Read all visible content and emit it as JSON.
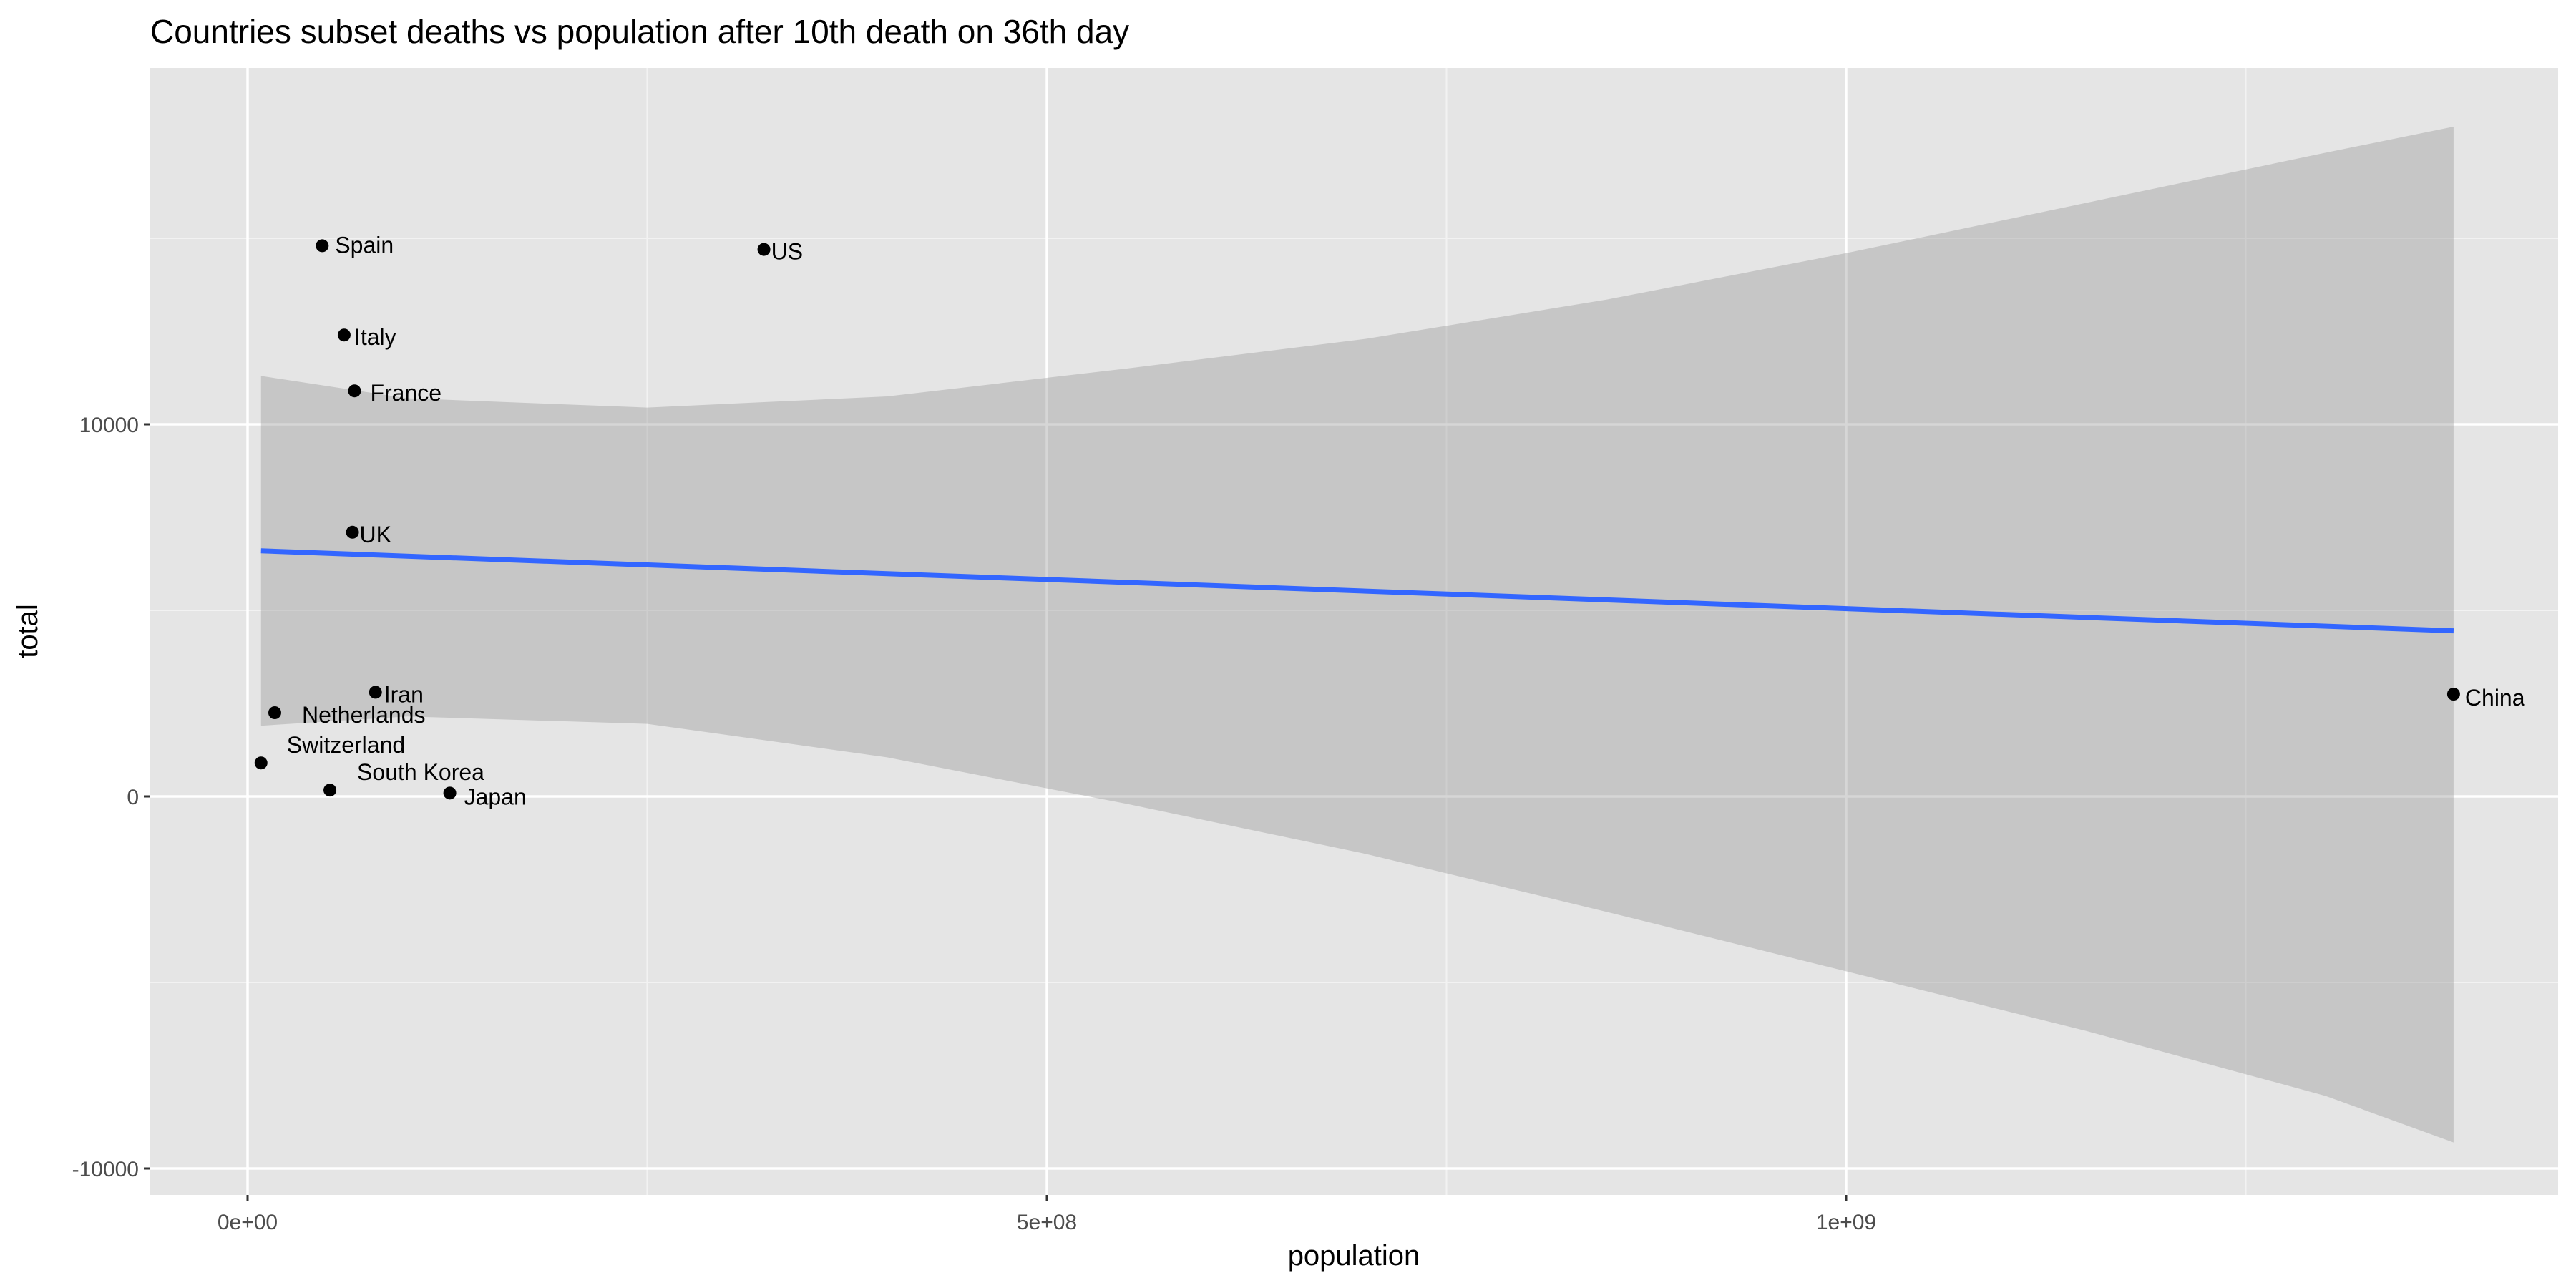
{
  "chart_data": {
    "type": "scatter",
    "title": "Countries subset deaths vs population after 10th death on 36th day",
    "xlabel": "population",
    "ylabel": "total",
    "xlim": [
      -60000000,
      1450000000
    ],
    "ylim": [
      -10600000,
      19000000
    ],
    "x_ticks": [
      0,
      500000000,
      1000000000
    ],
    "x_tick_labels": [
      "0e+00",
      "5e+08",
      "1e+09"
    ],
    "y_ticks": [
      -10000,
      0,
      10000
    ],
    "y_tick_labels": [
      "-10000",
      "0",
      "10000"
    ],
    "grid": true,
    "background": "#e5e5e5",
    "point_color": "#000000",
    "points": [
      {
        "label": "Spain",
        "x": 46700000,
        "y": 14800
      },
      {
        "label": "US",
        "x": 323000000,
        "y": 14700
      },
      {
        "label": "Italy",
        "x": 60400000,
        "y": 12400
      },
      {
        "label": "France",
        "x": 66900000,
        "y": 10900
      },
      {
        "label": "UK",
        "x": 65600000,
        "y": 7100
      },
      {
        "label": "Iran",
        "x": 80000000,
        "y": 2800
      },
      {
        "label": "Netherlands",
        "x": 17000000,
        "y": 2250
      },
      {
        "label": "Switzerland",
        "x": 8400000,
        "y": 900
      },
      {
        "label": "South Korea",
        "x": 51500000,
        "y": 170
      },
      {
        "label": "Japan",
        "x": 126500000,
        "y": 90
      },
      {
        "label": "China",
        "x": 1380000000,
        "y": 2750
      }
    ],
    "trend": {
      "color": "#3366ff",
      "x": [
        8400000,
        1380000000
      ],
      "y": [
        6600,
        4450
      ],
      "band_color": "#999999",
      "band_x": [
        8400000,
        100000000,
        250000000,
        400000000,
        550000000,
        700000000,
        850000000,
        1000000000,
        1150000000,
        1300000000,
        1380000000
      ],
      "band_upper": [
        11300,
        10700,
        10450,
        10750,
        11500,
        12300,
        13350,
        14600,
        15950,
        17300,
        18000
      ],
      "band_lower": [
        1900,
        2150,
        1950,
        1050,
        -200,
        -1550,
        -3100,
        -4700,
        -6300,
        -8050,
        -9300
      ]
    }
  }
}
